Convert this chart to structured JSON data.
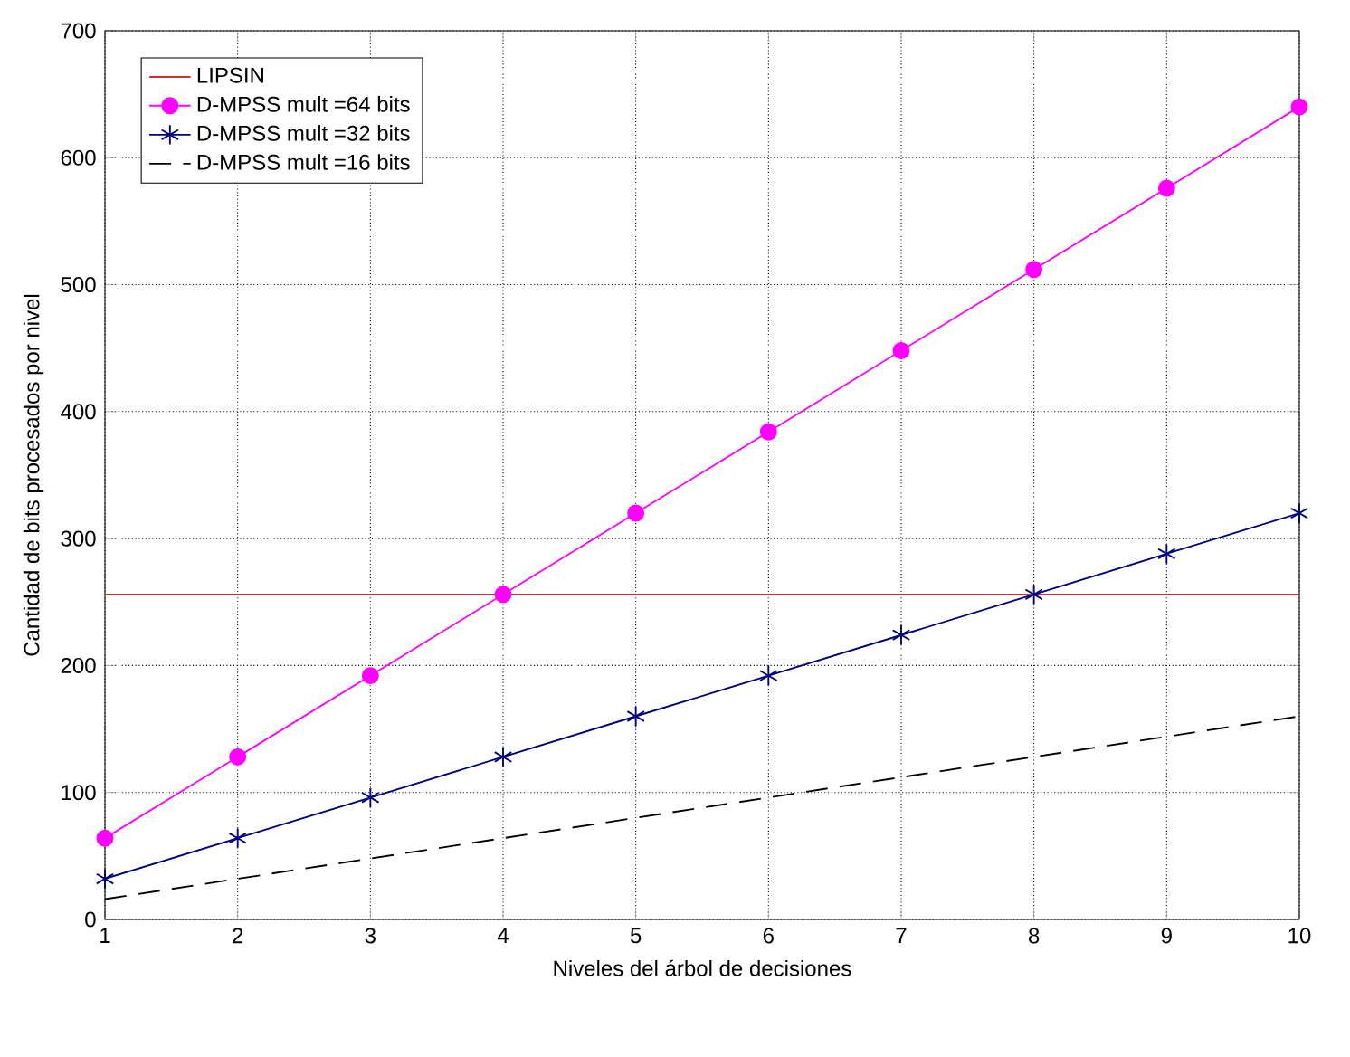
{
  "chart_data": {
    "type": "line",
    "xlabel": "Niveles del árbol de decisiones",
    "ylabel": "Cantidad de bits procesados por nivel",
    "x": [
      1,
      2,
      3,
      4,
      5,
      6,
      7,
      8,
      9,
      10
    ],
    "series": [
      {
        "name": "LIPSIN",
        "color": "#cc3333",
        "x": [
          1,
          10
        ],
        "values": [
          256,
          256
        ],
        "marker": "none",
        "line_style": "solid"
      },
      {
        "name": "D-MPSS mult =64 bits",
        "color": "#ff00ff",
        "values": [
          64,
          128,
          192,
          256,
          320,
          384,
          448,
          512,
          576,
          640
        ],
        "marker": "circle",
        "line_style": "solid"
      },
      {
        "name": "D-MPSS mult =32 bits",
        "color": "#000080",
        "values": [
          32,
          64,
          96,
          128,
          160,
          192,
          224,
          256,
          288,
          320
        ],
        "marker": "cross",
        "line_style": "solid"
      },
      {
        "name": "D-MPSS mult =16 bits",
        "color": "#000000",
        "values": [
          16,
          32,
          48,
          64,
          80,
          96,
          112,
          128,
          144,
          160
        ],
        "marker": "none",
        "line_style": "dashed"
      }
    ],
    "xlim": [
      1,
      10
    ],
    "ylim": [
      0,
      700
    ],
    "xticks": [
      1,
      2,
      3,
      4,
      5,
      6,
      7,
      8,
      9,
      10
    ],
    "yticks": [
      0,
      100,
      200,
      300,
      400,
      500,
      600,
      700
    ],
    "grid": true,
    "legend": "top left"
  }
}
